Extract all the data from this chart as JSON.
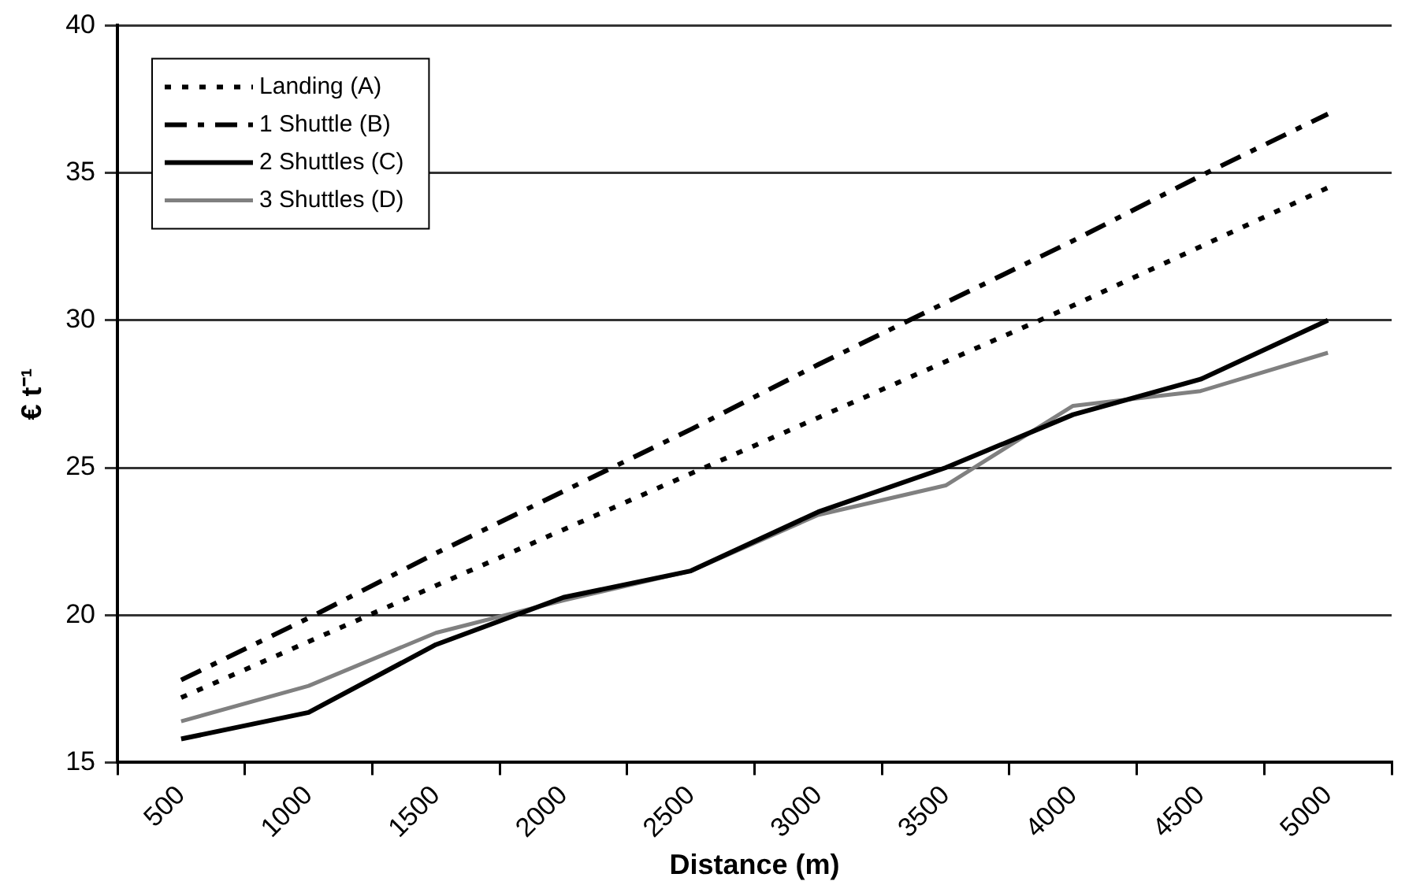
{
  "chart_data": {
    "type": "line",
    "xlabel": "Distance (m)",
    "ylabel": "€ t⁻¹",
    "categories": [
      "500",
      "1000",
      "1500",
      "2000",
      "2500",
      "3000",
      "3500",
      "4000",
      "4500",
      "5000"
    ],
    "series": [
      {
        "name": "Landing (A)",
        "color": "#000000",
        "line_style": "dotted",
        "values": [
          17.2,
          19.1,
          21.0,
          22.9,
          24.8,
          26.7,
          28.6,
          30.5,
          32.5,
          34.5
        ]
      },
      {
        "name": "1 Shuttle (B)",
        "color": "#000000",
        "line_style": "dashed",
        "values": [
          17.8,
          19.9,
          22.1,
          24.2,
          26.3,
          28.5,
          30.6,
          32.7,
          34.9,
          37.0
        ]
      },
      {
        "name": "2 Shuttles (C)",
        "color": "#000000",
        "line_style": "solid",
        "values": [
          15.8,
          16.7,
          19.0,
          20.6,
          21.5,
          23.5,
          25.0,
          26.8,
          28.0,
          30.0
        ]
      },
      {
        "name": "3 Shuttles (D)",
        "color": "#808080",
        "line_style": "solid",
        "values": [
          16.4,
          17.6,
          19.4,
          20.5,
          21.5,
          23.4,
          24.4,
          27.1,
          27.6,
          28.9
        ]
      }
    ],
    "ylim": [
      15,
      40
    ],
    "yticks": [
      15,
      20,
      25,
      30,
      35,
      40
    ],
    "grid": "y",
    "legend": "top left",
    "marker": "none"
  }
}
